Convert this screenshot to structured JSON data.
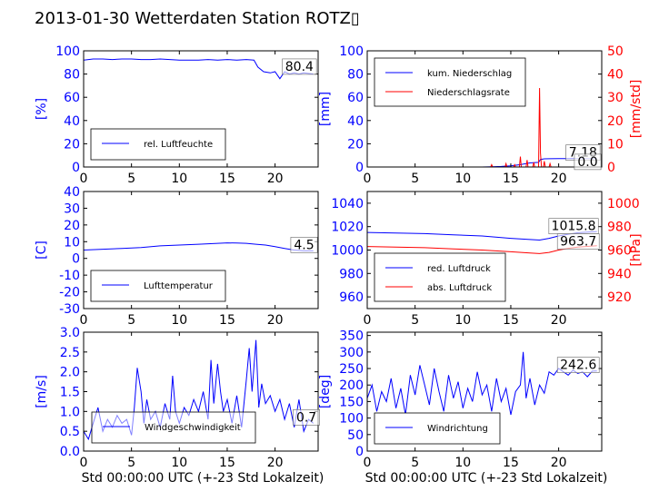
{
  "title": "2013-01-30 Wetterdaten Station ROTZ▯",
  "colors": {
    "primary": "#0000ff",
    "secondary": "#ff0000",
    "frame": "#000000"
  },
  "chart_data": [
    {
      "id": "humidity",
      "type": "line",
      "xlabel": "",
      "ylabel": "[%]",
      "xlim": [
        0,
        24.5
      ],
      "ylim": [
        0,
        100
      ],
      "xticks": [
        0,
        5,
        10,
        15,
        20
      ],
      "yticks": [
        0,
        20,
        40,
        60,
        80,
        100
      ],
      "legend": {
        "position": "bottom-left",
        "entries": [
          {
            "label": "rel. Luftfeuchte",
            "color": "#0000ff"
          }
        ]
      },
      "annotations": [
        {
          "text": "80.4"
        }
      ],
      "series": [
        {
          "name": "rel. Luftfeuchte",
          "color": "#0000ff",
          "x": [
            0,
            1,
            2,
            3,
            4,
            5,
            6,
            7,
            8,
            9,
            10,
            11,
            12,
            13,
            14,
            15,
            16,
            17,
            17.8,
            18.2,
            18.8,
            19.5,
            20,
            20.5,
            21,
            21.5,
            22,
            22.5,
            23,
            24
          ],
          "y": [
            92,
            93,
            93,
            92.5,
            93,
            93,
            92.5,
            92.5,
            93,
            92.5,
            92,
            92,
            92,
            92.5,
            92,
            92.5,
            92,
            92.5,
            92,
            86,
            82,
            81,
            82,
            76,
            82,
            80,
            81,
            80,
            81,
            80
          ]
        }
      ]
    },
    {
      "id": "precipitation",
      "type": "line",
      "xlabel": "",
      "ylabel": "[mm]",
      "y2label": "[mm/std]",
      "xlim": [
        0,
        24.5
      ],
      "ylim": [
        0,
        100
      ],
      "y2lim": [
        0,
        50
      ],
      "xticks": [
        0,
        5,
        10,
        15,
        20
      ],
      "yticks": [
        0,
        20,
        40,
        60,
        80,
        100
      ],
      "y2ticks": [
        0,
        10,
        20,
        30,
        40,
        50
      ],
      "legend": {
        "position": "top-left",
        "entries": [
          {
            "label": "kum. Niederschlag",
            "color": "#0000ff"
          },
          {
            "label": "Niederschlagsrate",
            "color": "#ff0000"
          }
        ]
      },
      "annotations": [
        {
          "text": "7.18"
        },
        {
          "text": "0.0"
        }
      ],
      "series": [
        {
          "name": "kum. Niederschlag",
          "color": "#0000ff",
          "axis": "left",
          "x": [
            0,
            12,
            13,
            14,
            15,
            16,
            17,
            17.9,
            18.1,
            18.5,
            19,
            20,
            22,
            24
          ],
          "y": [
            0,
            0,
            0.2,
            0.5,
            1,
            2,
            3.5,
            4,
            6.5,
            7,
            7.1,
            7.15,
            7.18,
            7.18
          ]
        },
        {
          "name": "Niederschlagsrate",
          "color": "#ff0000",
          "axis": "right",
          "x": [
            0,
            12.9,
            13,
            13.1,
            14.4,
            14.5,
            14.6,
            15.3,
            15.4,
            15.5,
            15.9,
            16.0,
            16.1,
            16.6,
            16.7,
            16.8,
            17.3,
            17.4,
            17.5,
            17.9,
            18.0,
            18.1,
            18.2,
            18.4,
            18.5,
            18.6,
            19.0,
            19.1,
            19.2,
            24
          ],
          "y": [
            0,
            0,
            1,
            0,
            0,
            1.5,
            0,
            0,
            1,
            0,
            0,
            4.5,
            0,
            0,
            3,
            0,
            0,
            2,
            0,
            0,
            34,
            6,
            0,
            0,
            2.5,
            0,
            0,
            1.5,
            0,
            0
          ]
        }
      ]
    },
    {
      "id": "temperature",
      "type": "line",
      "xlabel": "",
      "ylabel": "[C]",
      "xlim": [
        0,
        24.5
      ],
      "ylim": [
        -30,
        40
      ],
      "xticks": [
        0,
        5,
        10,
        15,
        20
      ],
      "yticks": [
        -30,
        -20,
        -10,
        0,
        10,
        20,
        30,
        40
      ],
      "legend": {
        "position": "bottom-left",
        "entries": [
          {
            "label": "Lufttemperatur",
            "color": "#0000ff"
          }
        ]
      },
      "annotations": [
        {
          "text": "4.5"
        }
      ],
      "series": [
        {
          "name": "Lufttemperatur",
          "color": "#0000ff",
          "x": [
            0,
            2,
            4,
            6,
            8,
            10,
            12,
            14,
            15,
            16,
            17,
            18,
            19,
            20,
            21,
            22,
            23,
            24
          ],
          "y": [
            5,
            5.5,
            6,
            6.5,
            7.5,
            8,
            8.5,
            9,
            9.3,
            9.2,
            9,
            8.5,
            8,
            7,
            6,
            5,
            4.5,
            4.5
          ]
        }
      ]
    },
    {
      "id": "pressure",
      "type": "line",
      "xlabel": "",
      "ylabel": "",
      "y2label": "[hPa]",
      "xlim": [
        0,
        24.5
      ],
      "ylim": [
        950,
        1050
      ],
      "y2lim": [
        910,
        1010
      ],
      "xticks": [
        0,
        5,
        10,
        15,
        20
      ],
      "yticks": [
        960,
        980,
        1000,
        1020,
        1040
      ],
      "y2ticks": [
        920,
        940,
        960,
        980,
        1000
      ],
      "legend": {
        "position": "bottom-left",
        "entries": [
          {
            "label": "red. Luftdruck",
            "color": "#0000ff"
          },
          {
            "label": "abs. Luftdruck",
            "color": "#ff0000"
          }
        ]
      },
      "annotations": [
        {
          "text": "1015.8"
        },
        {
          "text": "963.7"
        }
      ],
      "series": [
        {
          "name": "red. Luftdruck",
          "color": "#0000ff",
          "axis": "left",
          "x": [
            0,
            3,
            6,
            9,
            12,
            15,
            17,
            18,
            19,
            20,
            21,
            22,
            24
          ],
          "y": [
            1015,
            1014.5,
            1014,
            1013,
            1012,
            1010,
            1009,
            1008.5,
            1010,
            1012,
            1013.5,
            1014.8,
            1015.8
          ]
        },
        {
          "name": "abs. Luftdruck",
          "color": "#ff0000",
          "axis": "right",
          "x": [
            0,
            3,
            6,
            9,
            12,
            15,
            17,
            18,
            19,
            20,
            21,
            22,
            24
          ],
          "y": [
            963,
            962.5,
            962,
            961,
            960,
            958.5,
            957.5,
            957,
            958,
            960,
            961.5,
            962.5,
            963.7
          ]
        }
      ]
    },
    {
      "id": "windspeed",
      "type": "line",
      "xlabel": "Std 00:00:00 UTC (+-23 Std Lokalzeit)",
      "ylabel": "[m/s]",
      "xlim": [
        0,
        24.5
      ],
      "ylim": [
        0,
        3
      ],
      "xticks": [
        0,
        5,
        10,
        15,
        20
      ],
      "yticks": [
        0.0,
        0.5,
        1.0,
        1.5,
        2.0,
        2.5,
        3.0
      ],
      "legend": {
        "position": "bottom-center",
        "entries": [
          {
            "label": "Windgeschwindigkeit",
            "color": "#0000ff"
          }
        ]
      },
      "annotations": [
        {
          "text": "0.7"
        }
      ],
      "series": [
        {
          "name": "Windgeschwindigkeit",
          "color": "#0000ff",
          "x": [
            0,
            0.5,
            1,
            1.5,
            2,
            2.5,
            3,
            3.5,
            4,
            4.5,
            5,
            5.3,
            5.6,
            6,
            6.3,
            6.6,
            7,
            7.5,
            8,
            8.5,
            9,
            9.3,
            9.6,
            10,
            10.5,
            11,
            11.5,
            12,
            12.5,
            13,
            13.3,
            13.6,
            14,
            14.3,
            14.6,
            15,
            15.5,
            16,
            16.5,
            17,
            17.3,
            17.6,
            18,
            18.3,
            18.6,
            19,
            19.5,
            20,
            20.5,
            21,
            21.5,
            22,
            22.5,
            23,
            23.5,
            24
          ],
          "y": [
            0.5,
            0.3,
            0.7,
            1.1,
            0.5,
            0.8,
            0.6,
            0.9,
            0.7,
            0.8,
            0.4,
            1.1,
            2.1,
            1.5,
            0.7,
            1.3,
            0.8,
            1.0,
            0.6,
            1.2,
            0.8,
            1.9,
            1.0,
            0.7,
            1.1,
            0.9,
            1.3,
            1.0,
            1.5,
            0.8,
            2.3,
            1.2,
            2.2,
            1.5,
            1.0,
            1.3,
            0.7,
            1.4,
            0.6,
            1.8,
            2.6,
            1.5,
            2.8,
            1.1,
            1.7,
            1.2,
            1.4,
            1.0,
            1.3,
            0.8,
            1.2,
            0.6,
            1.3,
            0.5,
            0.8,
            0.7
          ]
        }
      ]
    },
    {
      "id": "winddirection",
      "type": "line",
      "xlabel": "Std 00:00:00 UTC (+-23 Std Lokalzeit)",
      "ylabel": "[deg]",
      "xlim": [
        0,
        24.5
      ],
      "ylim": [
        0,
        360
      ],
      "xticks": [
        0,
        5,
        10,
        15,
        20
      ],
      "yticks": [
        0,
        50,
        100,
        150,
        200,
        250,
        300,
        350
      ],
      "legend": {
        "position": "bottom-left",
        "entries": [
          {
            "label": "Windrichtung",
            "color": "#0000ff"
          }
        ]
      },
      "annotations": [
        {
          "text": "242.6"
        }
      ],
      "series": [
        {
          "name": "Windrichtung",
          "color": "#0000ff",
          "x": [
            0,
            0.5,
            1,
            1.5,
            2,
            2.5,
            3,
            3.5,
            4,
            4.5,
            5,
            5.5,
            6,
            6.5,
            7,
            7.5,
            8,
            8.5,
            9,
            9.5,
            10,
            10.5,
            11,
            11.5,
            12,
            12.5,
            13,
            13.5,
            14,
            14.5,
            15,
            15.5,
            16,
            16.3,
            16.6,
            17,
            17.5,
            18,
            18.5,
            19,
            19.5,
            20,
            20.5,
            21,
            21.5,
            22,
            22.5,
            23,
            23.5,
            24
          ],
          "y": [
            160,
            200,
            120,
            180,
            150,
            220,
            130,
            190,
            110,
            230,
            170,
            260,
            200,
            140,
            250,
            180,
            120,
            230,
            160,
            210,
            130,
            190,
            150,
            240,
            170,
            200,
            120,
            220,
            150,
            190,
            110,
            180,
            200,
            300,
            160,
            220,
            140,
            200,
            175,
            240,
            230,
            250,
            240,
            230,
            245,
            235,
            240,
            225,
            242,
            242.6
          ]
        }
      ]
    }
  ]
}
